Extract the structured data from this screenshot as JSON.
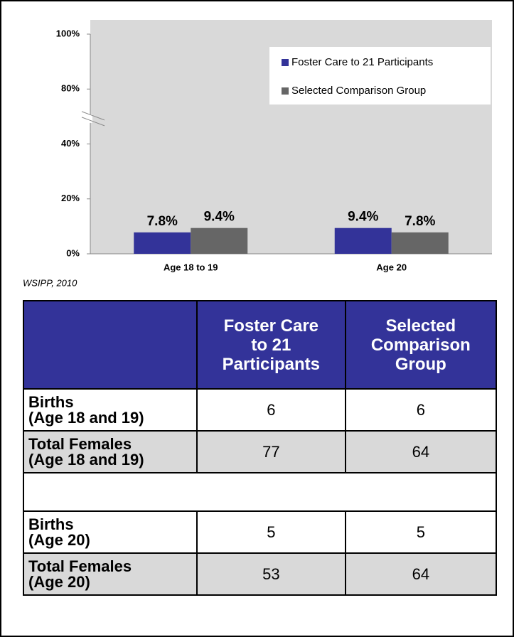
{
  "chart_data": {
    "type": "bar",
    "categories": [
      "Age 18 to 19",
      "Age 20"
    ],
    "series": [
      {
        "name": "Foster Care to 21 Participants",
        "color": "#333399",
        "values": [
          7.8,
          9.4
        ],
        "value_labels": [
          "7.8%",
          "9.4%"
        ]
      },
      {
        "name": "Selected Comparison Group",
        "color": "#666666",
        "values": [
          9.4,
          7.8
        ],
        "value_labels": [
          "9.4%",
          "7.8%"
        ]
      }
    ],
    "ylim": [
      0,
      100
    ],
    "yticks": [
      {
        "value": 0,
        "label": "0%"
      },
      {
        "value": 20,
        "label": "20%"
      },
      {
        "value": 40,
        "label": "40%"
      },
      {
        "value": 80,
        "label": "80%"
      },
      {
        "value": 100,
        "label": "100%"
      }
    ],
    "axis_break": true,
    "legend": "top-right",
    "source": "WSIPP, 2010"
  },
  "table": {
    "header": [
      [
        "Foster Care",
        "to 21",
        "Participants"
      ],
      [
        "Selected",
        "Comparison",
        "Group"
      ]
    ],
    "rows": [
      {
        "label": [
          "Births",
          "(Age 18 and 19)"
        ],
        "values": [
          6,
          6
        ]
      },
      {
        "label": [
          "Total Females",
          "(Age 18 and 19)"
        ],
        "values": [
          77,
          64
        ]
      },
      {
        "label": [
          "Births",
          "(Age 20)"
        ],
        "values": [
          5,
          5
        ]
      },
      {
        "label": [
          "Total Females",
          "(Age 20)"
        ],
        "values": [
          53,
          64
        ]
      }
    ]
  }
}
